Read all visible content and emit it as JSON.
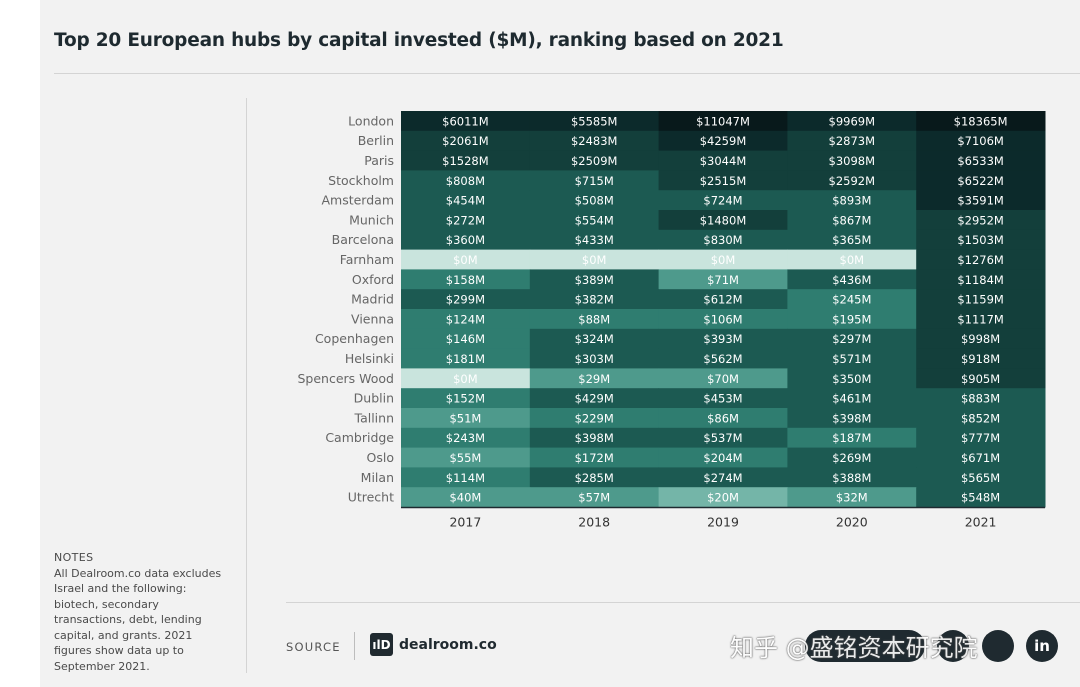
{
  "title": "Top 20 European hubs by capital invested ($M), ranking based on 2021",
  "notes": {
    "heading": "NOTES",
    "text": "All Dealroom.co data excludes Israel and the following: biotech, secondary transactions, debt, lending capital, and grants. 2021 figures show data up to September 2021."
  },
  "source": {
    "label": "SOURCE",
    "logo_mark": "ılD",
    "logo_text": "dealroom.co"
  },
  "watermark": "知乎 @盛铭资本研究院",
  "share": {
    "linkedin_label": "in"
  },
  "colors": {
    "scale": [
      "#c9e4dd",
      "#9fd0c4",
      "#74b5a8",
      "#4e9a8c",
      "#2f7d70",
      "#1c5a52",
      "#133f3b",
      "#0c2a2b",
      "#08191b"
    ],
    "dark_text": "#ffffff",
    "light_text": "#ffffff"
  },
  "chart_data": {
    "type": "heatmap",
    "title": "Top 20 European hubs by capital invested ($M), ranking based on 2021",
    "columns": [
      "2017",
      "2018",
      "2019",
      "2020",
      "2021"
    ],
    "rows": [
      "London",
      "Berlin",
      "Paris",
      "Stockholm",
      "Amsterdam",
      "Munich",
      "Barcelona",
      "Farnham",
      "Oxford",
      "Madrid",
      "Vienna",
      "Copenhagen",
      "Helsinki",
      "Spencers Wood",
      "Dublin",
      "Tallinn",
      "Cambridge",
      "Oslo",
      "Milan",
      "Utrecht"
    ],
    "values": [
      [
        6011,
        5585,
        11047,
        9969,
        18365
      ],
      [
        2061,
        2483,
        4259,
        2873,
        7106
      ],
      [
        1528,
        2509,
        3044,
        3098,
        6533
      ],
      [
        808,
        715,
        2515,
        2592,
        6522
      ],
      [
        454,
        508,
        724,
        893,
        3591
      ],
      [
        272,
        554,
        1480,
        867,
        2952
      ],
      [
        360,
        433,
        830,
        365,
        1503
      ],
      [
        0,
        0,
        0,
        0,
        1276
      ],
      [
        158,
        389,
        71,
        436,
        1184
      ],
      [
        299,
        382,
        612,
        245,
        1159
      ],
      [
        124,
        88,
        106,
        195,
        1117
      ],
      [
        146,
        324,
        393,
        297,
        998
      ],
      [
        181,
        303,
        562,
        571,
        918
      ],
      [
        0,
        29,
        70,
        350,
        905
      ],
      [
        152,
        429,
        453,
        461,
        883
      ],
      [
        51,
        229,
        86,
        398,
        852
      ],
      [
        243,
        398,
        537,
        187,
        777
      ],
      [
        55,
        172,
        204,
        269,
        671
      ],
      [
        114,
        285,
        274,
        388,
        565
      ],
      [
        40,
        57,
        20,
        32,
        548
      ]
    ],
    "value_format": "$%M",
    "legend": "none"
  }
}
